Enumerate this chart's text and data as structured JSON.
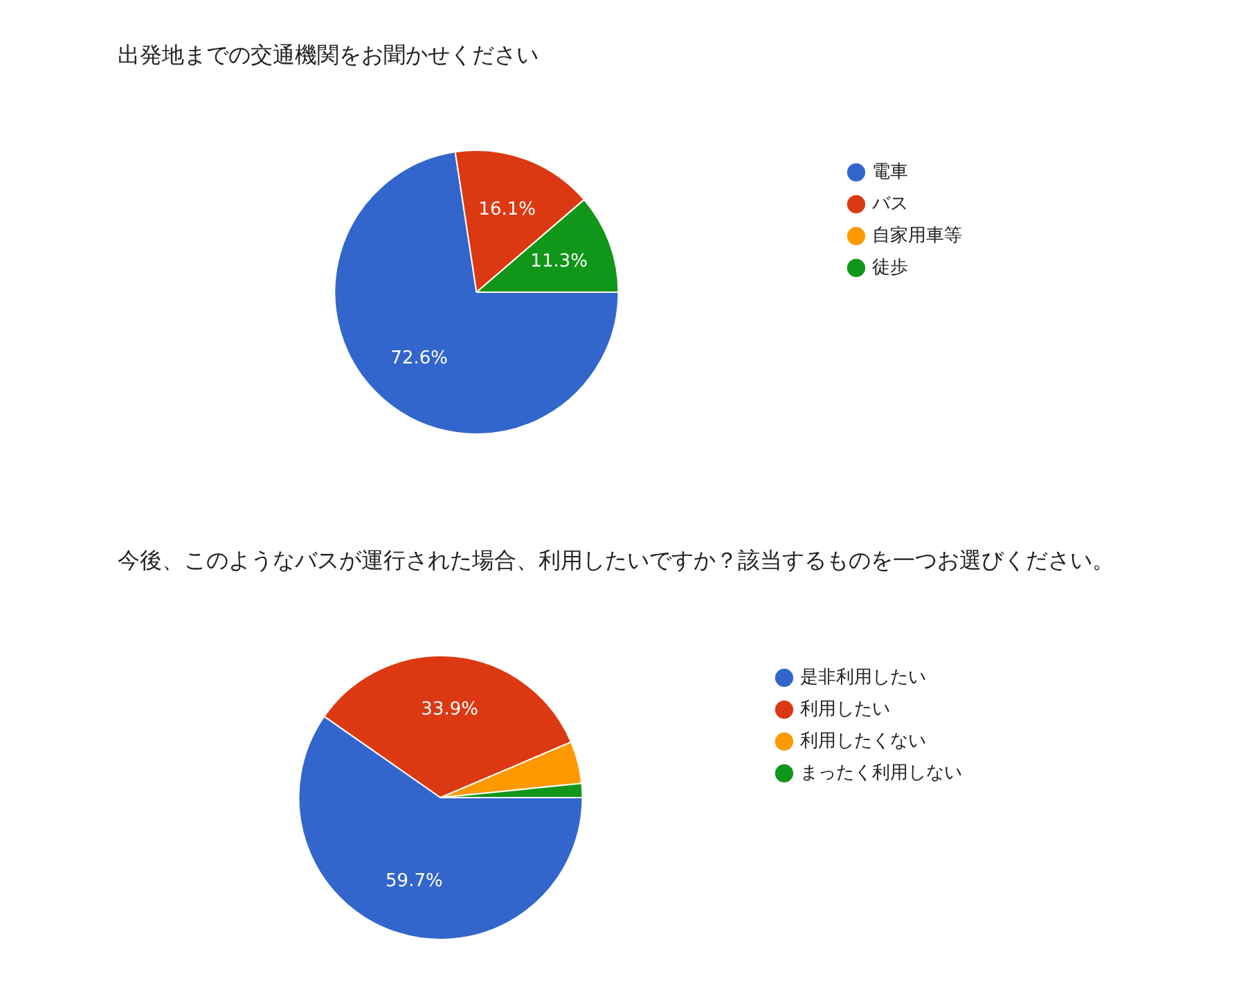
{
  "chart_data": [
    {
      "type": "pie",
      "title": "出発地までの交通機関をお聞かせください",
      "categories": [
        "電車",
        "バス",
        "自家用車等",
        "徒歩"
      ],
      "values": [
        72.6,
        16.1,
        0,
        11.3
      ],
      "colors": [
        "#3366cc",
        "#dc3912",
        "#ff9900",
        "#109618"
      ],
      "value_labels": [
        "72.6%",
        "16.1%",
        null,
        "11.3%"
      ],
      "legend": "right"
    },
    {
      "type": "pie",
      "title": "今後、このようなバスが運行された場合、利用したいですか？該当するものを一つお選びください。",
      "categories": [
        "是非利用したい",
        "利用したい",
        "利用したくない",
        "まったく利用しない"
      ],
      "values": [
        59.7,
        33.9,
        4.8,
        1.6
      ],
      "colors": [
        "#3366cc",
        "#dc3912",
        "#ff9900",
        "#109618"
      ],
      "value_labels": [
        "59.7%",
        "33.9%",
        null,
        null
      ],
      "legend": "right"
    }
  ]
}
